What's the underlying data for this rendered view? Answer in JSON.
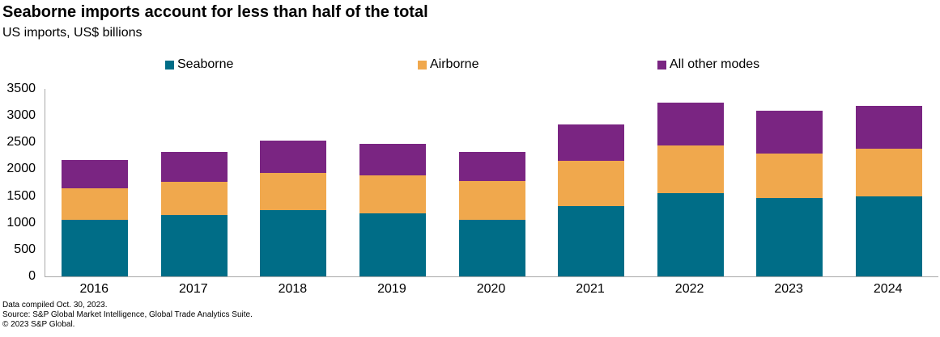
{
  "header": {
    "title": "Seaborne imports account for less than half of the total",
    "subtitle": "US imports, US$ billions"
  },
  "footer": {
    "line1": "Data compiled Oct. 30, 2023.",
    "line2": "Source: S&P Global Market Intelligence, Global Trade Analytics Suite.",
    "line3": "© 2023 S&P Global."
  },
  "colors": {
    "seaborne": "#006D87",
    "airborne": "#F0A84D",
    "all_other_modes": "#7A2582",
    "axis_line": "#A9A9A9",
    "text": "#000000"
  },
  "chart_data": {
    "type": "bar",
    "stacked": true,
    "title": "Seaborne imports account for less than half of the total",
    "subtitle": "US imports, US$ billions",
    "categories": [
      "2016",
      "2017",
      "2018",
      "2019",
      "2020",
      "2021",
      "2022",
      "2023",
      "2024"
    ],
    "series": [
      {
        "name": "Seaborne",
        "color": "#006D87",
        "values": [
          1060,
          1140,
          1240,
          1180,
          1060,
          1320,
          1550,
          1460,
          1500
        ]
      },
      {
        "name": "Airborne",
        "color": "#F0A84D",
        "values": [
          580,
          630,
          690,
          700,
          720,
          840,
          890,
          840,
          880
        ]
      },
      {
        "name": "All other modes",
        "color": "#7A2582",
        "values": [
          540,
          560,
          600,
          600,
          550,
          670,
          800,
          790,
          800
        ]
      }
    ],
    "totals": [
      2180,
      2330,
      2530,
      2480,
      2330,
      2830,
      3240,
      3090,
      3180
    ],
    "xlabel": "",
    "ylabel": "",
    "ylim": [
      0,
      3500
    ],
    "yticks": [
      0,
      500,
      1000,
      1500,
      2000,
      2500,
      3000,
      3500
    ],
    "grid": false,
    "legend_position": "top"
  }
}
